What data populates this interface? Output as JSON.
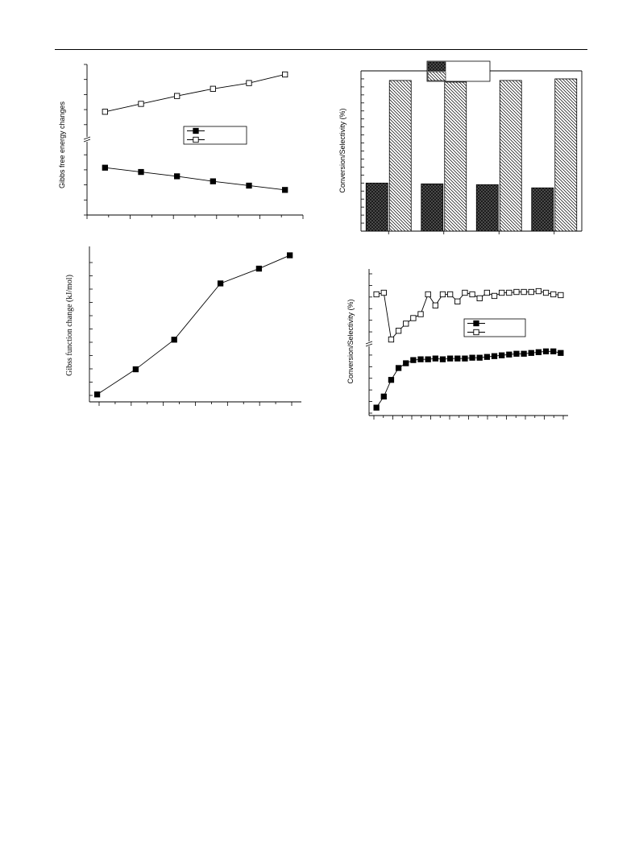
{
  "page": {
    "background": "#ffffff",
    "ink": "#000000"
  },
  "chart_data": [
    {
      "id": "gibbs-free-energy",
      "type": "line",
      "title": "",
      "xlabel": "",
      "ylabel": "Gibbs free energy changes",
      "y_axis_break": true,
      "legend": "center-right",
      "x": [
        1,
        2,
        3,
        4,
        5,
        6
      ],
      "series": [
        {
          "name": "",
          "marker": "filled-square",
          "values": [
            1.8,
            1.5,
            1.2,
            0.85,
            0.55,
            0.25
          ]
        },
        {
          "name": "",
          "marker": "open-square",
          "values": [
            5.7,
            6.25,
            6.8,
            7.3,
            7.7,
            8.3
          ]
        }
      ],
      "xlim": [
        0.5,
        6.5
      ],
      "ylim": [
        -1.5,
        9
      ]
    },
    {
      "id": "conversion-selectivity-bars",
      "type": "bar",
      "title": "",
      "xlabel": "",
      "ylabel": "Conversion/Selectivity (%)",
      "legend": "top-center",
      "categories": [
        "",
        "",
        "",
        ""
      ],
      "series": [
        {
          "name": "",
          "pattern": "cross-hatch-dark",
          "values": [
            30,
            29.5,
            29,
            27
          ]
        },
        {
          "name": "",
          "pattern": "diagonal-hatch",
          "values": [
            94,
            93,
            94,
            95
          ]
        }
      ],
      "ylim": [
        0,
        100
      ]
    },
    {
      "id": "gibbs-function-change",
      "type": "line",
      "title": "",
      "xlabel": "",
      "ylabel": "Gibss function change (kJ/mol)",
      "x": [
        0,
        1,
        2,
        3.2,
        4.2,
        5
      ],
      "series": [
        {
          "name": "",
          "marker": "filled-square",
          "values": [
            0,
            1.7,
            3.7,
            7.5,
            8.5,
            9.4
          ]
        }
      ],
      "xlim": [
        -0.2,
        5.3
      ],
      "ylim": [
        -0.5,
        10
      ]
    },
    {
      "id": "conversion-selectivity-time",
      "type": "line",
      "title": "",
      "xlabel": "",
      "ylabel": "Conversion/Selectivity (%)",
      "y_axis_break": true,
      "legend": "center-right",
      "x": [
        1,
        2,
        3,
        4,
        5,
        6,
        7,
        8,
        9,
        10,
        11,
        12,
        13,
        14,
        15,
        16,
        17,
        18,
        19,
        20,
        21,
        22,
        23,
        24,
        25,
        26
      ],
      "series": [
        {
          "name": "",
          "marker": "filled-square",
          "values": [
            0.5,
            1.9,
            4.0,
            5.5,
            6.1,
            6.5,
            6.6,
            6.6,
            6.7,
            6.6,
            6.7,
            6.7,
            6.7,
            6.8,
            6.8,
            6.9,
            7.0,
            7.1,
            7.2,
            7.3,
            7.3,
            7.4,
            7.5,
            7.6,
            7.6,
            7.4
          ]
        },
        {
          "name": "",
          "marker": "open-square",
          "values": [
            14.8,
            15.0,
            9.1,
            10.2,
            11.1,
            11.8,
            12.3,
            14.8,
            13.4,
            14.8,
            14.8,
            13.9,
            15.0,
            14.8,
            14.3,
            15.0,
            14.6,
            15.0,
            15.0,
            15.1,
            15.1,
            15.1,
            15.2,
            15.0,
            14.8,
            14.7
          ]
        }
      ],
      "xlim": [
        0,
        27
      ],
      "ylim": [
        -0.5,
        18
      ]
    }
  ]
}
